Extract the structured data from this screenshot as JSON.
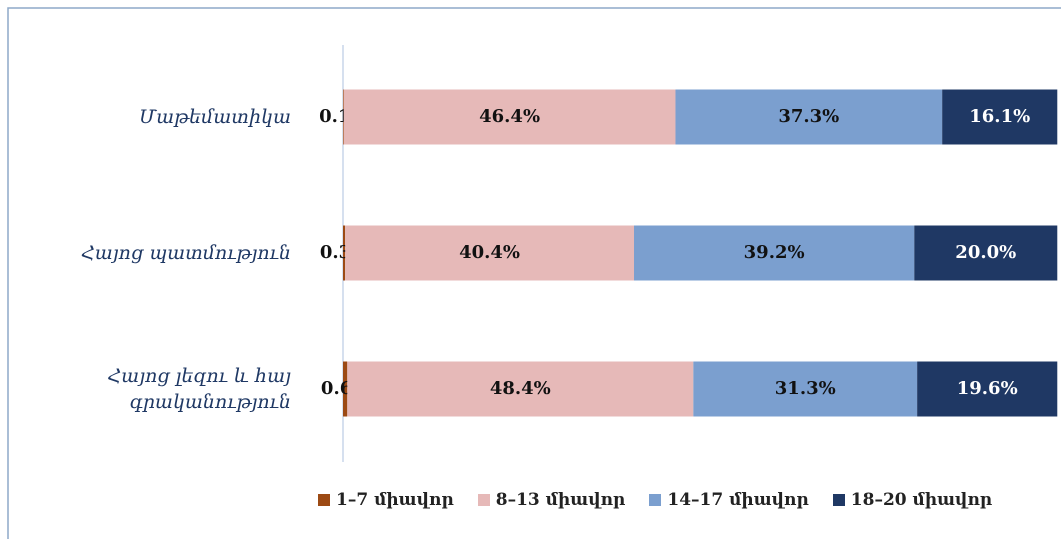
{
  "chart_data": {
    "type": "stacked-barh",
    "categories": [
      "Մաթեմատիկա",
      "Հայոց պատմություն",
      "Հայոց լեզու և հայ գրականություն"
    ],
    "xlim": [
      0,
      100
    ],
    "legend": "bottom",
    "series": [
      {
        "name": "1–7 միավոր",
        "color": "#9c4a14",
        "values": [
          0.1,
          0.3,
          0.6
        ],
        "value_labels": [
          "0.1%",
          "0.3%",
          "0.6%"
        ]
      },
      {
        "name": "8–13 միավոր",
        "color": "#e6b9b8",
        "values": [
          46.4,
          40.4,
          48.4
        ],
        "value_labels": [
          "46.4%",
          "40.4%",
          "48.4%"
        ]
      },
      {
        "name": "14–17 միավոր",
        "color": "#7b9fcf",
        "values": [
          37.3,
          39.2,
          31.3
        ],
        "value_labels": [
          "37.3%",
          "39.2%",
          "31.3%"
        ]
      },
      {
        "name": "18–20 միավոր",
        "color": "#1f3864",
        "values": [
          16.1,
          20.0,
          19.6
        ],
        "value_labels": [
          "16.1%",
          "20.0%",
          "19.6%"
        ]
      }
    ]
  }
}
